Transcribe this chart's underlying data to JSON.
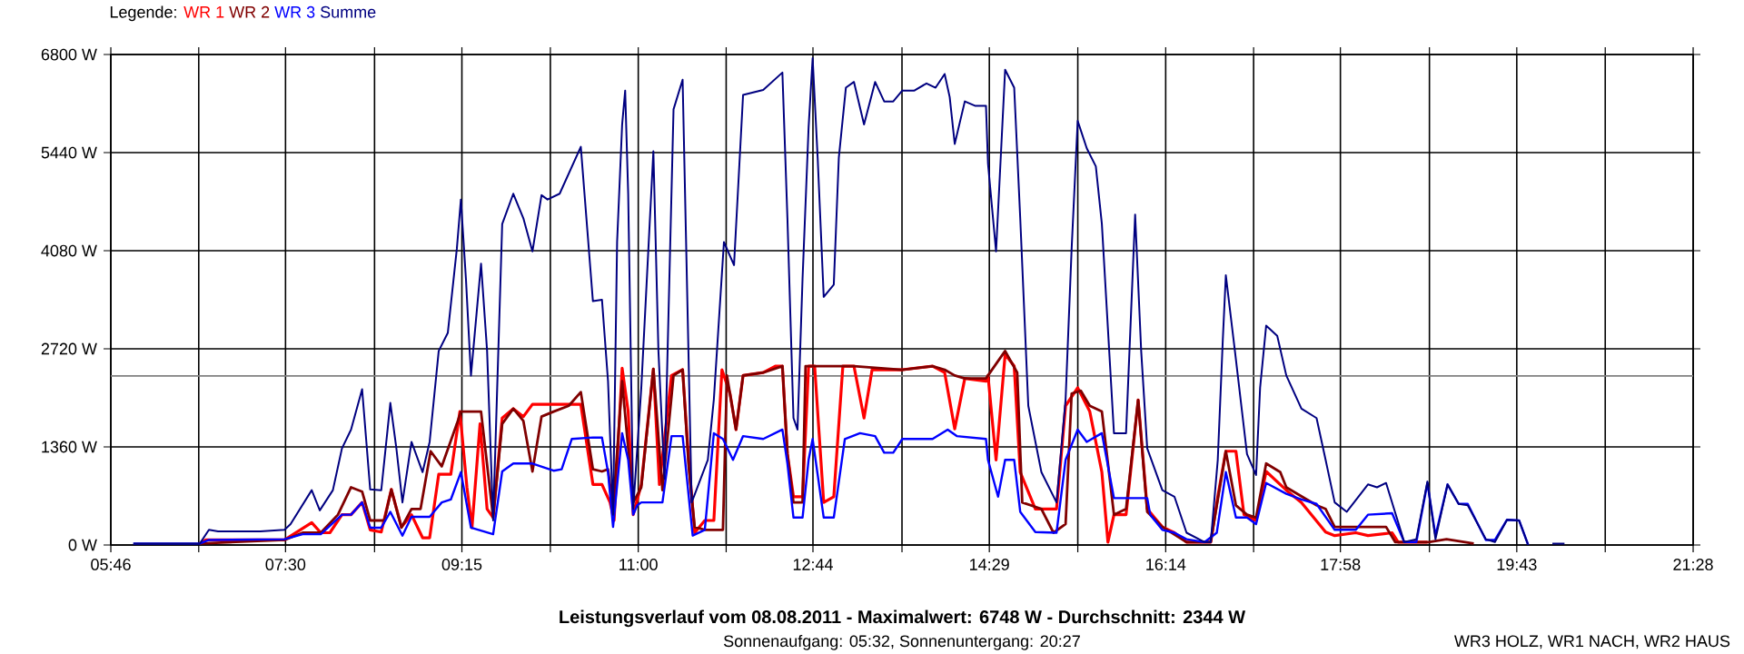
{
  "chart_data": {
    "type": "line",
    "title": "Leistungsverlauf vom 08.08.2011 - Maximalwert: 6748 W - Durchschnitt: 2344 W",
    "subtitle": "Sonnenaufgang: 05:32, Sonnenuntergang: 20:27",
    "annotations": [
      "WR3 HOLZ, WR1 NACH, WR2 HAUS"
    ],
    "legend_title": "Legende:",
    "legend": "top left",
    "grid": true,
    "xlim": [
      5.7667,
      21.4667
    ],
    "xticks": [
      {
        "value": 5.7667,
        "label": "05:46"
      },
      {
        "value": 6.6389,
        "label": null
      },
      {
        "value": 7.5,
        "label": "07:30"
      },
      {
        "value": 8.3833,
        "label": null
      },
      {
        "value": 9.25,
        "label": "09:15"
      },
      {
        "value": 10.1278,
        "label": null
      },
      {
        "value": 11.0,
        "label": "11:00"
      },
      {
        "value": 11.8722,
        "label": null
      },
      {
        "value": 12.7333,
        "label": "12:44"
      },
      {
        "value": 13.6167,
        "label": null
      },
      {
        "value": 14.4833,
        "label": "14:29"
      },
      {
        "value": 15.3611,
        "label": null
      },
      {
        "value": 16.2333,
        "label": "16:14"
      },
      {
        "value": 17.1056,
        "label": null
      },
      {
        "value": 17.9667,
        "label": "17:58"
      },
      {
        "value": 18.85,
        "label": null
      },
      {
        "value": 19.7167,
        "label": "19:43"
      },
      {
        "value": 20.5944,
        "label": null
      },
      {
        "value": 21.4667,
        "label": "21:28"
      }
    ],
    "ylim": [
      0,
      6800
    ],
    "yticks": [
      {
        "value": 0,
        "label": "0 W"
      },
      {
        "value": 1360,
        "label": "1360 W"
      },
      {
        "value": 2720,
        "label": "2720 W"
      },
      {
        "value": 4080,
        "label": "4080 W"
      },
      {
        "value": 5440,
        "label": "5440 W"
      },
      {
        "value": 6800,
        "label": "6800 W"
      }
    ],
    "ref_lines": [
      {
        "axis": "y",
        "value": 2344,
        "color": "#808080"
      }
    ],
    "series": [
      {
        "name": "WR 1",
        "color": "#ff0000",
        "x": [
          6.65,
          6.71,
          7.49,
          7.76,
          7.85,
          7.94,
          8.06,
          8.15,
          8.26,
          8.34,
          8.45,
          8.55,
          8.65,
          8.75,
          8.86,
          8.93,
          9.02,
          9.14,
          9.23,
          9.3,
          9.35,
          9.43,
          9.5,
          9.56,
          9.65,
          9.76,
          9.86,
          9.95,
          10.31,
          10.43,
          10.55,
          10.64,
          10.72,
          10.76,
          10.84,
          10.9,
          10.95,
          11.03,
          11.15,
          11.21,
          11.33,
          11.44,
          11.5,
          11.56,
          11.66,
          11.75,
          11.83,
          11.91,
          11.97,
          12.04,
          12.24,
          12.36,
          12.43,
          12.48,
          12.54,
          12.63,
          12.69,
          12.75,
          12.84,
          12.94,
          13.03,
          13.14,
          13.24,
          13.32,
          13.62,
          13.92,
          14.04,
          14.14,
          14.24,
          14.45,
          14.47,
          14.55,
          14.64,
          14.73,
          14.79,
          14.94,
          15.15,
          15.24,
          15.36,
          15.48,
          15.6,
          15.66,
          15.72,
          15.84,
          15.96,
          16.05,
          16.2,
          16.32,
          16.44,
          16.68,
          16.75,
          16.83,
          16.93,
          17.01,
          17.13,
          17.23,
          17.43,
          17.58,
          17.82,
          17.91,
          18.12,
          18.24,
          18.48,
          18.54,
          18.83
        ],
        "values": [
          20,
          70,
          70,
          310,
          170,
          170,
          420,
          420,
          590,
          210,
          180,
          770,
          250,
          420,
          100,
          100,
          980,
          980,
          1850,
          800,
          240,
          1680,
          500,
          380,
          1760,
          1890,
          1780,
          1950,
          1950,
          1950,
          840,
          840,
          590,
          340,
          2450,
          1850,
          420,
          840,
          2440,
          840,
          2350,
          2430,
          1180,
          170,
          340,
          340,
          2430,
          2100,
          1600,
          2350,
          2390,
          2480,
          2480,
          1260,
          670,
          670,
          2480,
          2480,
          590,
          670,
          2480,
          2480,
          1760,
          2430,
          2430,
          2480,
          2390,
          1610,
          2310,
          2270,
          2350,
          1180,
          2640,
          2480,
          1010,
          500,
          500,
          1930,
          2180,
          1850,
          1010,
          40,
          420,
          420,
          2010,
          500,
          250,
          170,
          40,
          40,
          670,
          1300,
          1300,
          420,
          340,
          1020,
          760,
          590,
          180,
          130,
          170,
          130,
          170,
          40,
          40
        ]
      },
      {
        "name": "WR 2",
        "color": "#800000",
        "x": [
          6.65,
          7.49,
          7.67,
          7.85,
          8.02,
          8.15,
          8.26,
          8.34,
          8.48,
          8.55,
          8.65,
          8.75,
          8.84,
          8.94,
          9.05,
          9.2,
          9.24,
          9.44,
          9.56,
          9.65,
          9.76,
          9.86,
          9.95,
          10.04,
          10.16,
          10.31,
          10.43,
          10.55,
          10.64,
          10.7,
          10.75,
          10.84,
          10.9,
          10.95,
          11.03,
          11.15,
          11.24,
          11.35,
          11.44,
          11.5,
          11.56,
          11.66,
          11.84,
          11.88,
          11.97,
          12.04,
          12.24,
          12.43,
          12.48,
          12.54,
          12.63,
          12.66,
          12.84,
          13.14,
          13.62,
          13.92,
          14.04,
          14.14,
          14.24,
          14.45,
          14.47,
          14.64,
          14.76,
          14.81,
          15.0,
          15.12,
          15.24,
          15.3,
          15.39,
          15.48,
          15.6,
          15.72,
          15.84,
          15.96,
          16.05,
          16.2,
          16.44,
          16.68,
          16.83,
          16.93,
          17.04,
          17.13,
          17.23,
          17.37,
          17.43,
          17.73,
          17.82,
          17.91,
          18.42,
          18.51,
          18.84,
          19.02,
          19.29
        ],
        "values": [
          20,
          70,
          170,
          170,
          420,
          800,
          740,
          340,
          340,
          770,
          240,
          500,
          500,
          1300,
          1090,
          1680,
          1850,
          1850,
          380,
          1680,
          1890,
          1720,
          1020,
          1780,
          1850,
          1930,
          2120,
          1050,
          1020,
          1050,
          500,
          2270,
          1340,
          590,
          800,
          2440,
          760,
          2350,
          2430,
          1090,
          250,
          210,
          210,
          2350,
          1600,
          2350,
          2390,
          2480,
          1260,
          590,
          590,
          2480,
          2480,
          2480,
          2430,
          2480,
          2430,
          2350,
          2310,
          2310,
          2350,
          2690,
          2390,
          590,
          500,
          170,
          290,
          2100,
          2140,
          1930,
          1850,
          420,
          500,
          2010,
          460,
          250,
          40,
          40,
          1300,
          550,
          420,
          380,
          1130,
          1010,
          800,
          550,
          500,
          250,
          250,
          40,
          40,
          80,
          20
        ]
      },
      {
        "name": "WR 3",
        "color": "#0000ff",
        "x": [
          5.99,
          6.65,
          6.74,
          7.49,
          7.67,
          7.85,
          8.06,
          8.15,
          8.26,
          8.34,
          8.45,
          8.54,
          8.66,
          8.75,
          8.93,
          9.05,
          9.14,
          9.24,
          9.34,
          9.56,
          9.65,
          9.76,
          9.95,
          10.16,
          10.24,
          10.34,
          10.55,
          10.64,
          10.7,
          10.75,
          10.84,
          10.9,
          10.95,
          10.99,
          11.03,
          11.15,
          11.24,
          11.33,
          11.44,
          11.54,
          11.66,
          11.75,
          11.84,
          11.94,
          12.04,
          12.24,
          12.43,
          12.48,
          12.54,
          12.63,
          12.69,
          12.73,
          12.84,
          12.94,
          13.05,
          13.2,
          13.35,
          13.44,
          13.53,
          13.62,
          13.92,
          14.07,
          14.16,
          14.45,
          14.47,
          14.57,
          14.64,
          14.73,
          14.79,
          14.94,
          15.15,
          15.24,
          15.36,
          15.45,
          15.6,
          15.72,
          16.05,
          16.08,
          16.2,
          16.32,
          16.44,
          16.62,
          16.74,
          16.83,
          16.93,
          17.04,
          17.13,
          17.23,
          17.43,
          17.58,
          17.73,
          17.91,
          18.12,
          18.24,
          18.48,
          18.6,
          18.72,
          18.83,
          18.91,
          19.03,
          19.14,
          19.23,
          19.41,
          19.5,
          19.62,
          19.74,
          19.83
        ],
        "values": [
          20,
          20,
          70,
          80,
          150,
          150,
          420,
          420,
          590,
          240,
          240,
          460,
          130,
          390,
          390,
          590,
          630,
          1010,
          240,
          150,
          1020,
          1130,
          1130,
          1030,
          1050,
          1470,
          1490,
          1490,
          1010,
          250,
          1550,
          1180,
          420,
          550,
          590,
          590,
          590,
          1510,
          1510,
          130,
          210,
          1550,
          1470,
          1180,
          1510,
          1470,
          1600,
          1130,
          380,
          380,
          1180,
          1470,
          380,
          380,
          1470,
          1550,
          1510,
          1280,
          1280,
          1470,
          1470,
          1600,
          1510,
          1470,
          1180,
          670,
          1180,
          1180,
          460,
          180,
          170,
          1180,
          1600,
          1430,
          1550,
          650,
          650,
          420,
          210,
          170,
          80,
          40,
          170,
          1010,
          380,
          380,
          290,
          860,
          710,
          630,
          570,
          210,
          210,
          420,
          440,
          40,
          40,
          860,
          130,
          840,
          570,
          570,
          70,
          70,
          350,
          340,
          0
        ]
      },
      {
        "name": "Summe",
        "color": "#000080",
        "x": [
          5.99,
          6.65,
          6.74,
          6.83,
          7.25,
          7.49,
          7.55,
          7.76,
          7.84,
          7.97,
          8.06,
          8.15,
          8.26,
          8.34,
          8.45,
          8.54,
          8.6,
          8.66,
          8.75,
          8.86,
          8.93,
          9.02,
          9.11,
          9.2,
          9.24,
          9.29,
          9.34,
          9.44,
          9.5,
          9.56,
          9.65,
          9.76,
          9.86,
          9.95,
          10.04,
          10.1,
          10.22,
          10.43,
          10.55,
          10.64,
          10.7,
          10.75,
          10.79,
          10.84,
          10.87,
          10.9,
          10.95,
          11.03,
          11.15,
          11.2,
          11.26,
          11.35,
          11.44,
          11.53,
          11.69,
          11.75,
          11.85,
          11.95,
          12.04,
          12.24,
          12.43,
          12.48,
          12.54,
          12.58,
          12.63,
          12.69,
          12.73,
          12.78,
          12.84,
          12.94,
          12.99,
          13.06,
          13.14,
          13.24,
          13.35,
          13.44,
          13.53,
          13.62,
          13.74,
          13.86,
          13.95,
          14.04,
          14.09,
          14.14,
          14.24,
          14.34,
          14.45,
          14.47,
          14.55,
          14.64,
          14.73,
          14.79,
          14.87,
          15.0,
          15.15,
          15.24,
          15.3,
          15.36,
          15.45,
          15.54,
          15.6,
          15.72,
          15.84,
          15.93,
          15.99,
          16.05,
          16.2,
          16.32,
          16.44,
          16.62,
          16.68,
          16.75,
          16.8,
          16.83,
          16.92,
          17.04,
          17.13,
          17.17,
          17.23,
          17.34,
          17.43,
          17.58,
          17.73,
          17.82,
          17.91,
          18.03,
          18.24,
          18.33,
          18.42,
          18.6,
          18.72,
          18.83,
          18.91,
          19.03,
          19.14,
          19.23,
          19.41,
          19.5,
          19.62,
          19.74,
          19.83,
          19.95,
          20.07,
          20.19
        ],
        "values": [
          20,
          20,
          210,
          190,
          190,
          210,
          290,
          760,
          480,
          760,
          1340,
          1600,
          2160,
          770,
          760,
          1970,
          1340,
          590,
          1430,
          1010,
          1430,
          2690,
          2940,
          4110,
          4790,
          3690,
          2350,
          3900,
          2690,
          340,
          4450,
          4870,
          4530,
          4070,
          4850,
          4790,
          4870,
          5520,
          3380,
          3400,
          2270,
          420,
          4200,
          5830,
          6300,
          4870,
          500,
          2180,
          5460,
          2690,
          920,
          6040,
          6450,
          590,
          1180,
          2020,
          4200,
          3880,
          6240,
          6310,
          6550,
          4530,
          1760,
          1600,
          3690,
          5790,
          6750,
          5370,
          3440,
          3610,
          5370,
          6340,
          6420,
          5830,
          6420,
          6150,
          6150,
          6300,
          6300,
          6400,
          6340,
          6530,
          6210,
          5560,
          6150,
          6090,
          6090,
          5290,
          4070,
          6590,
          6340,
          4530,
          1930,
          1010,
          590,
          2020,
          4110,
          5880,
          5500,
          5250,
          4450,
          1550,
          1550,
          4580,
          2690,
          1340,
          760,
          670,
          170,
          40,
          40,
          1180,
          2850,
          3740,
          2690,
          1260,
          970,
          2180,
          3040,
          2900,
          2350,
          1890,
          1760,
          1180,
          590,
          460,
          840,
          800,
          860,
          40,
          80,
          880,
          80,
          840,
          570,
          550,
          80,
          40,
          350,
          340,
          0,
          null,
          20,
          20
        ]
      }
    ]
  }
}
